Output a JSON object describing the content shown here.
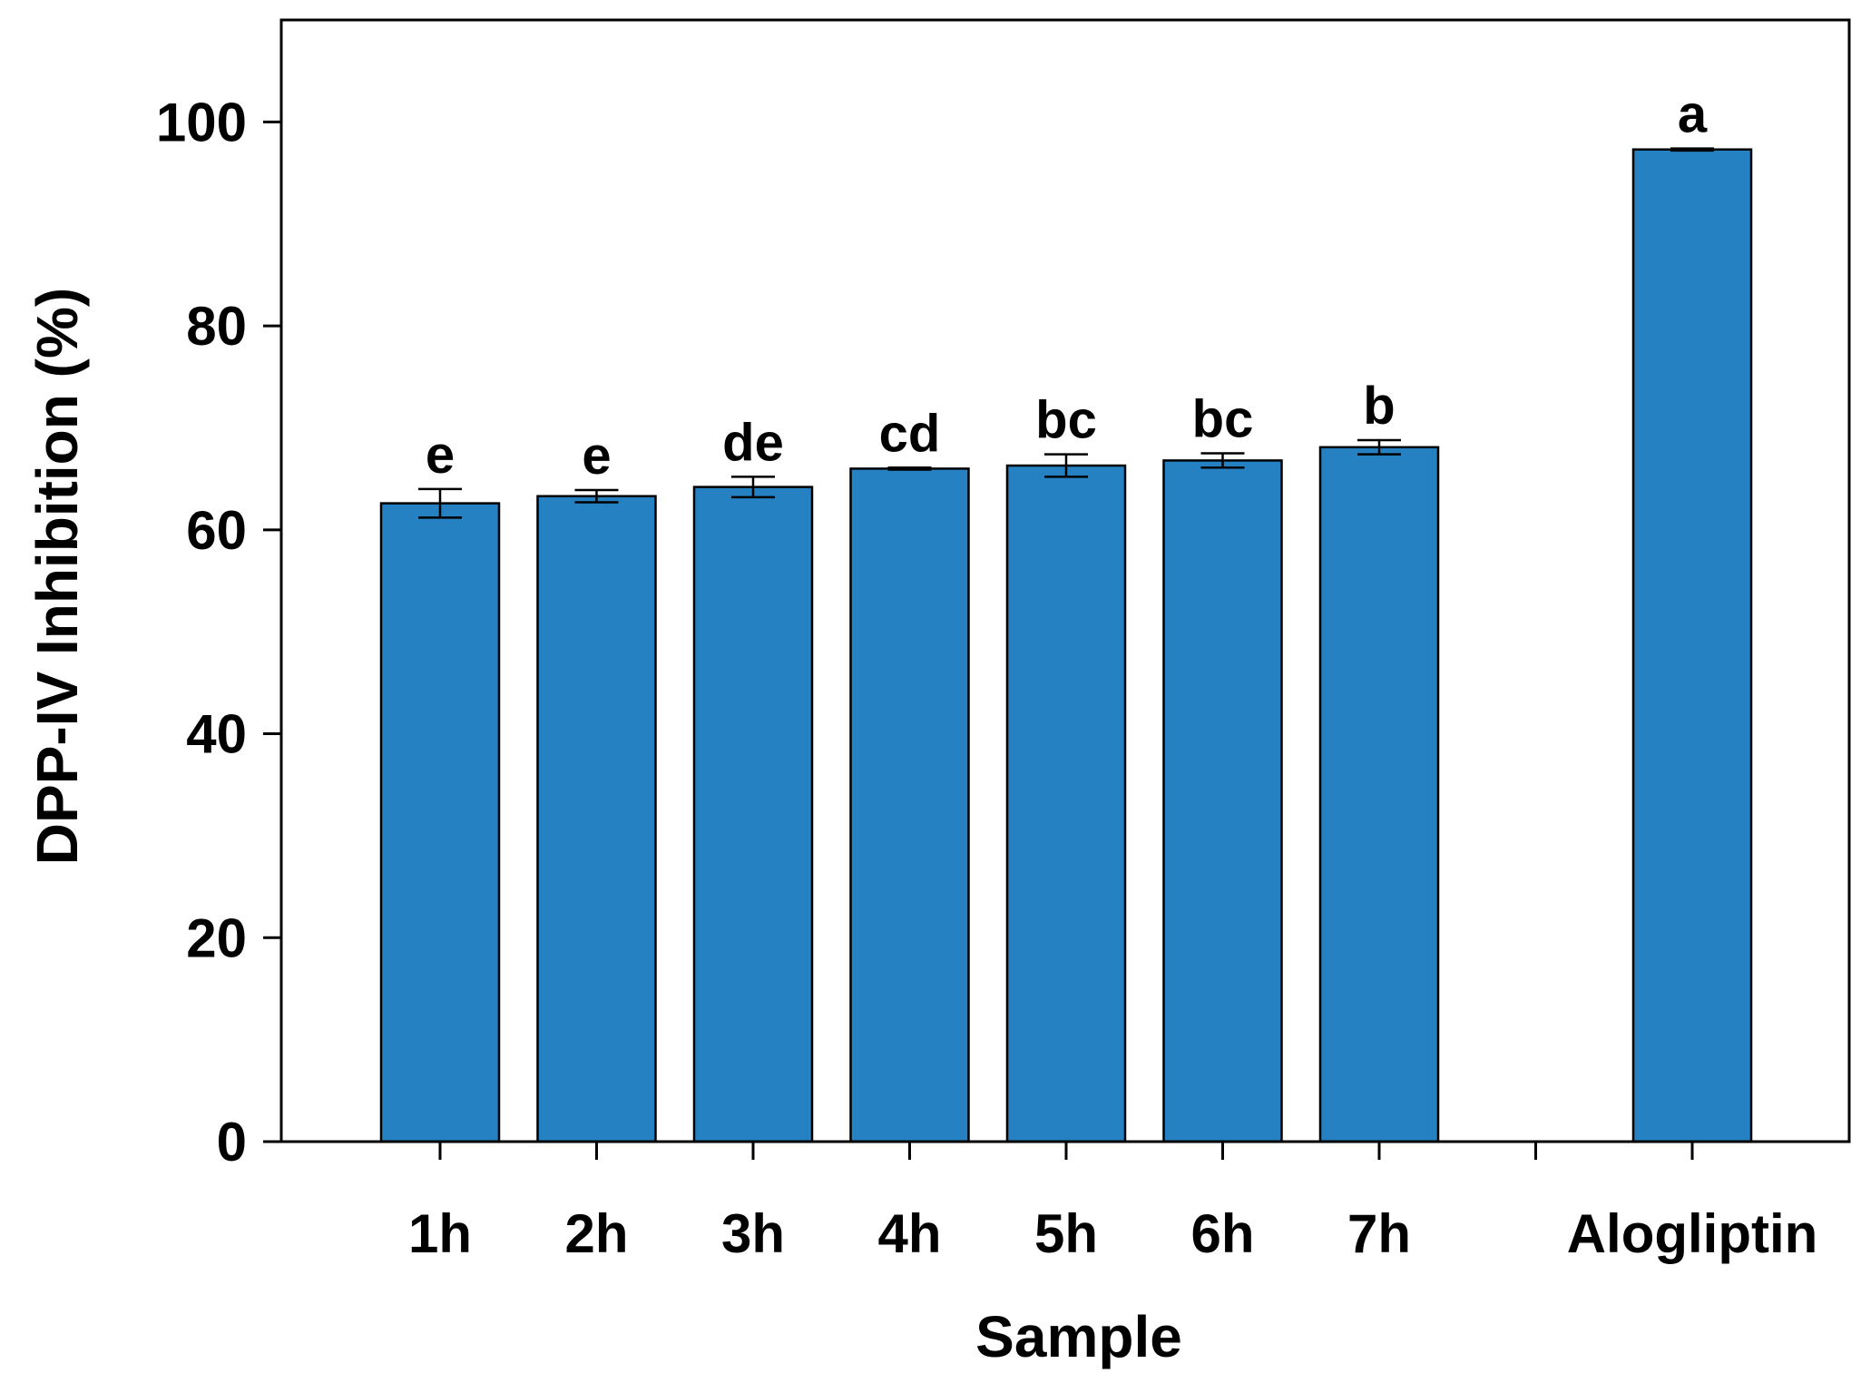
{
  "chart_data": {
    "type": "bar",
    "title": "",
    "xlabel": "Sample",
    "ylabel": "DPP-IV Inhibition (%)",
    "ylim": [
      0,
      110
    ],
    "yticks": [
      0,
      20,
      40,
      60,
      80,
      100
    ],
    "categories": [
      "1h",
      "2h",
      "3h",
      "4h",
      "5h",
      "6h",
      "7h",
      "",
      "Alogliptin"
    ],
    "values": [
      62.6,
      63.3,
      64.2,
      66.0,
      66.3,
      66.8,
      68.1,
      null,
      97.3
    ],
    "errors": [
      1.4,
      0.6,
      1.0,
      0.1,
      1.1,
      0.7,
      0.7,
      null,
      0.1
    ],
    "significance_labels": [
      "e",
      "e",
      "de",
      "cd",
      "bc",
      "bc",
      "b",
      "",
      "a"
    ],
    "bar_color": "#2581c1",
    "grid": false,
    "legend": "none"
  }
}
